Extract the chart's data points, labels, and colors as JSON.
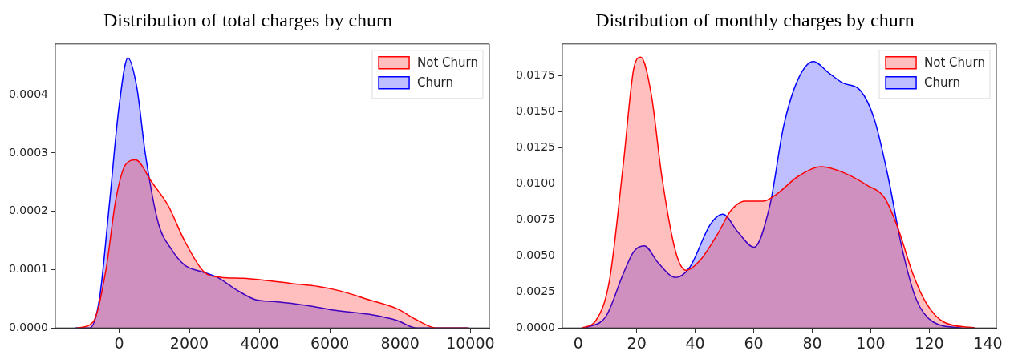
{
  "chart_data": [
    {
      "type": "area",
      "title": "Distribution of total charges by churn",
      "legend": "top right",
      "grid": false,
      "marker": "none",
      "xlim": [
        -1814,
        10540
      ],
      "xticks": [
        0,
        2000,
        4000,
        6000,
        8000,
        10000
      ],
      "ylim": [
        0,
        0.000487
      ],
      "yticks": [
        {
          "value": 0,
          "label": "0.0000"
        },
        {
          "value": 0.0001,
          "label": "0.0001"
        },
        {
          "value": 0.0002,
          "label": "0.0002"
        },
        {
          "value": 0.0003,
          "label": "0.0003"
        },
        {
          "value": 0.0004,
          "label": "0.0004"
        }
      ],
      "series": [
        {
          "name": "Not Churn",
          "color": "#ff0000",
          "x": [
            -1209,
            -744,
            -372,
            -93,
            186,
            465,
            930,
            1395,
            1860,
            2419,
            2884,
            3535,
            4093,
            4930,
            5674,
            6326,
            7070,
            7907,
            8465,
            9023,
            9953
          ],
          "values": [
            0,
            1e-05,
            0.0001,
            0.00022,
            0.00028,
            0.000288,
            0.00025,
            0.00021,
            0.00015,
            9.6e-05,
            8.7e-05,
            8.5e-05,
            8.2e-05,
            7.6e-05,
            7.1e-05,
            6.3e-05,
            4.9e-05,
            3.3e-05,
            1.4e-05,
            0,
            0
          ]
        },
        {
          "name": "Churn",
          "color": "#0000ff",
          "x": [
            -1256,
            -837,
            -558,
            -279,
            0,
            251,
            512,
            744,
            1116,
            1488,
            1860,
            2419,
            2791,
            3349,
            3907,
            4465,
            5395,
            6047,
            7256,
            7907,
            8465,
            9116,
            9953
          ],
          "values": [
            0,
            0,
            5e-05,
            0.00021,
            0.00038,
            0.000463,
            0.00041,
            0.0003,
            0.00018,
            0.000135,
            0.000108,
            9.5e-05,
            8.7e-05,
            6.5e-05,
            4.8e-05,
            4.5e-05,
            3.8e-05,
            3.1e-05,
            2.2e-05,
            1.3e-05,
            0,
            0,
            0
          ]
        }
      ]
    },
    {
      "type": "area",
      "title": "Distribution of monthly charges by churn",
      "legend": "top right",
      "grid": false,
      "marker": "none",
      "xlim": [
        -5.4,
        142.9
      ],
      "xticks": [
        0,
        20,
        40,
        60,
        80,
        100,
        120,
        140
      ],
      "ylim": [
        0,
        0.01972
      ],
      "yticks": [
        {
          "value": 0,
          "label": "0.0000"
        },
        {
          "value": 0.0025,
          "label": "0.0025"
        },
        {
          "value": 0.005,
          "label": "0.0050"
        },
        {
          "value": 0.0075,
          "label": "0.0075"
        },
        {
          "value": 0.01,
          "label": "0.0100"
        },
        {
          "value": 0.0125,
          "label": "0.0125"
        },
        {
          "value": 0.015,
          "label": "0.0150"
        },
        {
          "value": 0.0175,
          "label": "0.0175"
        }
      ],
      "series": [
        {
          "name": "Not Churn",
          "color": "#ff0000",
          "x": [
            1.2,
            6,
            10.7,
            15.5,
            19,
            21.4,
            25,
            28.6,
            33.3,
            36.9,
            41.7,
            47.6,
            52.4,
            57.1,
            63.1,
            67.9,
            75,
            83.3,
            90.5,
            98.8,
            104.8,
            109.5,
            114.3,
            119,
            125,
            135.7
          ],
          "values": [
            0,
            0.0005,
            0.0033,
            0.0115,
            0.018,
            0.0188,
            0.0162,
            0.0105,
            0.0053,
            0.004,
            0.0047,
            0.0065,
            0.0082,
            0.0088,
            0.0088,
            0.0093,
            0.0105,
            0.0112,
            0.0108,
            0.0099,
            0.009,
            0.0068,
            0.0038,
            0.0017,
            0.0004,
            0
          ]
        },
        {
          "name": "Churn",
          "color": "#0000ff",
          "x": [
            2.4,
            9.5,
            15.5,
            19,
            22.6,
            27.4,
            33.3,
            38.1,
            45.2,
            49.4,
            54.8,
            60.1,
            65.5,
            70.2,
            75,
            80.4,
            85.7,
            90.5,
            96.4,
            101.2,
            105.9,
            110.7,
            115.5,
            121.4,
            131
          ],
          "values": [
            0,
            0.0008,
            0.0038,
            0.0053,
            0.0057,
            0.0045,
            0.0035,
            0.0042,
            0.0072,
            0.0079,
            0.0066,
            0.0056,
            0.0085,
            0.014,
            0.0172,
            0.0185,
            0.0177,
            0.017,
            0.0165,
            0.0145,
            0.0105,
            0.0055,
            0.002,
            0.0004,
            0
          ]
        }
      ]
    }
  ]
}
